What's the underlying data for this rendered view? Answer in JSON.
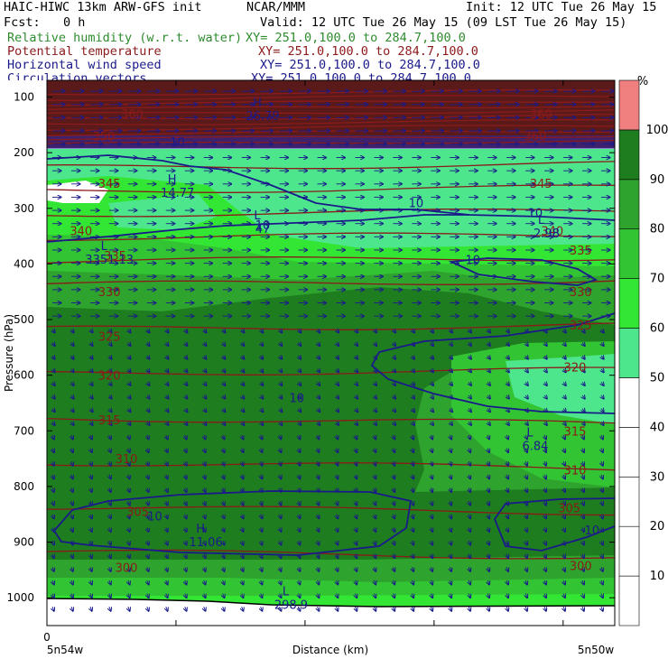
{
  "header": {
    "title": "HAIC-HIWC 13km ARW-GFS init",
    "org": "NCAR/MMM",
    "init": "Init: 12 UTC Tue 26 May 15",
    "fcst_label": "Fcst:",
    "fcst_value": "0 h",
    "valid": "Valid: 12 UTC Tue 26 May 15 (09 LST Tue 26 May 15)",
    "fields": [
      {
        "name": "Relative humidity (w.r.t. water)",
        "xy": "XY= 251.0,100.0 to 284.7,100.0",
        "color": "#2e8b2e"
      },
      {
        "name": "Potential temperature",
        "xy": "XY= 251.0,100.0 to 284.7,100.0",
        "color": "#8b1a1a"
      },
      {
        "name": "Horizontal wind speed",
        "xy": "XY= 251.0,100.0 to 284.7,100.0",
        "color": "#1a1a8b"
      },
      {
        "name": "Circulation vectors",
        "xy": "XY= 251.0,100.0 to 284.7,100.0",
        "color": "#1a1a8b"
      }
    ]
  },
  "chart_data": {
    "type": "heatmap",
    "title": "",
    "xlabel": "Distance (km)",
    "ylabel": "Pressure (hPa)",
    "x_start_label": "5n54w",
    "x_end_label": "5n50w",
    "x_zero_label": "0",
    "y_ticks": [
      100,
      200,
      300,
      400,
      500,
      600,
      700,
      800,
      900,
      1000
    ],
    "ylim": [
      70,
      1050
    ],
    "colorbar": {
      "unit": "%",
      "levels": [
        10,
        20,
        30,
        40,
        50,
        60,
        70,
        80,
        90,
        100
      ],
      "colors": [
        "#ffffff",
        "#ffffff",
        "#ffffff",
        "#ffffff",
        "#ffffff",
        "#4de68c",
        "#33e633",
        "#33c433",
        "#2ea32e",
        "#1e7d1e",
        "#f08080"
      ]
    },
    "theta_labels": [
      {
        "value": "360",
        "x": 0.15,
        "p": 130
      },
      {
        "value": "360",
        "x": 0.87,
        "p": 130
      },
      {
        "value": "350",
        "x": 0.1,
        "p": 170
      },
      {
        "value": "360",
        "x": 0.86,
        "p": 170
      },
      {
        "value": "345",
        "x": 0.11,
        "p": 255
      },
      {
        "value": "345",
        "x": 0.87,
        "p": 255
      },
      {
        "value": "340",
        "x": 0.06,
        "p": 340
      },
      {
        "value": "340",
        "x": 0.89,
        "p": 340
      },
      {
        "value": "335",
        "x": 0.12,
        "p": 385
      },
      {
        "value": "335",
        "x": 0.94,
        "p": 375
      },
      {
        "value": "330",
        "x": 0.11,
        "p": 450
      },
      {
        "value": "330",
        "x": 0.94,
        "p": 450
      },
      {
        "value": "325",
        "x": 0.11,
        "p": 530
      },
      {
        "value": "325",
        "x": 0.94,
        "p": 510
      },
      {
        "value": "320",
        "x": 0.11,
        "p": 600
      },
      {
        "value": "320",
        "x": 0.93,
        "p": 585
      },
      {
        "value": "315",
        "x": 0.11,
        "p": 680
      },
      {
        "value": "315",
        "x": 0.93,
        "p": 700
      },
      {
        "value": "310",
        "x": 0.14,
        "p": 750
      },
      {
        "value": "310",
        "x": 0.93,
        "p": 770
      },
      {
        "value": "305",
        "x": 0.16,
        "p": 845
      },
      {
        "value": "305",
        "x": 0.92,
        "p": 838
      },
      {
        "value": "300",
        "x": 0.14,
        "p": 945
      },
      {
        "value": "300",
        "x": 0.94,
        "p": 942
      }
    ],
    "wind_labels": [
      {
        "value": "10",
        "x": 0.23,
        "p": 180
      },
      {
        "value": "10",
        "x": 0.38,
        "p": 330
      },
      {
        "value": "10",
        "x": 0.86,
        "p": 308
      },
      {
        "value": "10",
        "x": 0.65,
        "p": 290
      },
      {
        "value": "10",
        "x": 0.75,
        "p": 392
      },
      {
        "value": "10",
        "x": 0.44,
        "p": 640
      },
      {
        "value": "10",
        "x": 0.19,
        "p": 853
      },
      {
        "value": "10",
        "x": 0.96,
        "p": 878
      }
    ],
    "extrema": [
      {
        "kind": "H",
        "value": "14.77",
        "x": 0.23,
        "p": 265
      },
      {
        "kind": "L",
        "value": "47",
        "x": 0.38,
        "p": 330
      },
      {
        "kind": "L",
        "value": "3351.13",
        "x": 0.11,
        "p": 385
      },
      {
        "kind": "L",
        "value": "2.98",
        "x": 0.88,
        "p": 338
      },
      {
        "kind": "L",
        "value": "6.84",
        "x": 0.86,
        "p": 720
      },
      {
        "kind": "H",
        "value": "11.06",
        "x": 0.28,
        "p": 893
      },
      {
        "kind": "L",
        "value": "298.9",
        "x": 0.43,
        "p": 1005
      },
      {
        "kind": "H",
        "value": "26.79",
        "x": 0.38,
        "p": 127
      }
    ]
  }
}
